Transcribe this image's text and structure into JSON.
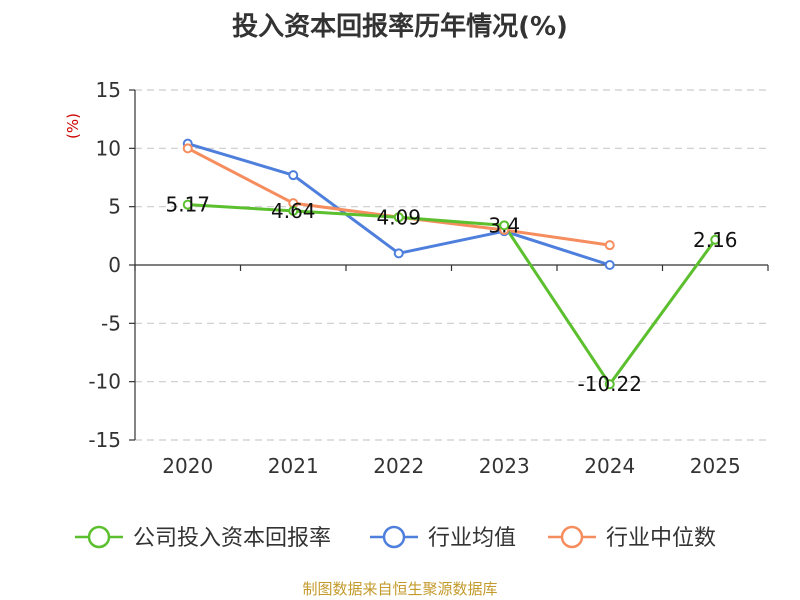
{
  "title": "投入资本回报率历年情况(%)",
  "source": "制图数据来自恒生聚源数据库",
  "chart_data": {
    "type": "line",
    "title": "投入资本回报率历年情况(%)",
    "ylabel": "(%)",
    "xlabel": "",
    "categories": [
      "2020",
      "2021",
      "2022",
      "2023",
      "2024",
      "2025"
    ],
    "ylim": [
      -15,
      15
    ],
    "yticks": [
      15,
      10,
      5,
      0,
      -5,
      -10,
      -15
    ],
    "grid": true,
    "legend_position": "bottom",
    "series": [
      {
        "name": "公司投入资本回报率",
        "color": "#5bbf2e",
        "values": [
          5.17,
          4.64,
          4.09,
          3.4,
          -10.22,
          2.16
        ],
        "labels": [
          "5.17",
          "4.64",
          "4.09",
          "3.4",
          "-10.22",
          "2.16"
        ]
      },
      {
        "name": "行业均值",
        "color": "#4f7fdc",
        "values": [
          10.4,
          7.7,
          1.0,
          2.9,
          0.0,
          null
        ]
      },
      {
        "name": "行业中位数",
        "color": "#f58d5e",
        "values": [
          10.0,
          5.3,
          4.1,
          3.0,
          1.7,
          null
        ]
      }
    ]
  }
}
